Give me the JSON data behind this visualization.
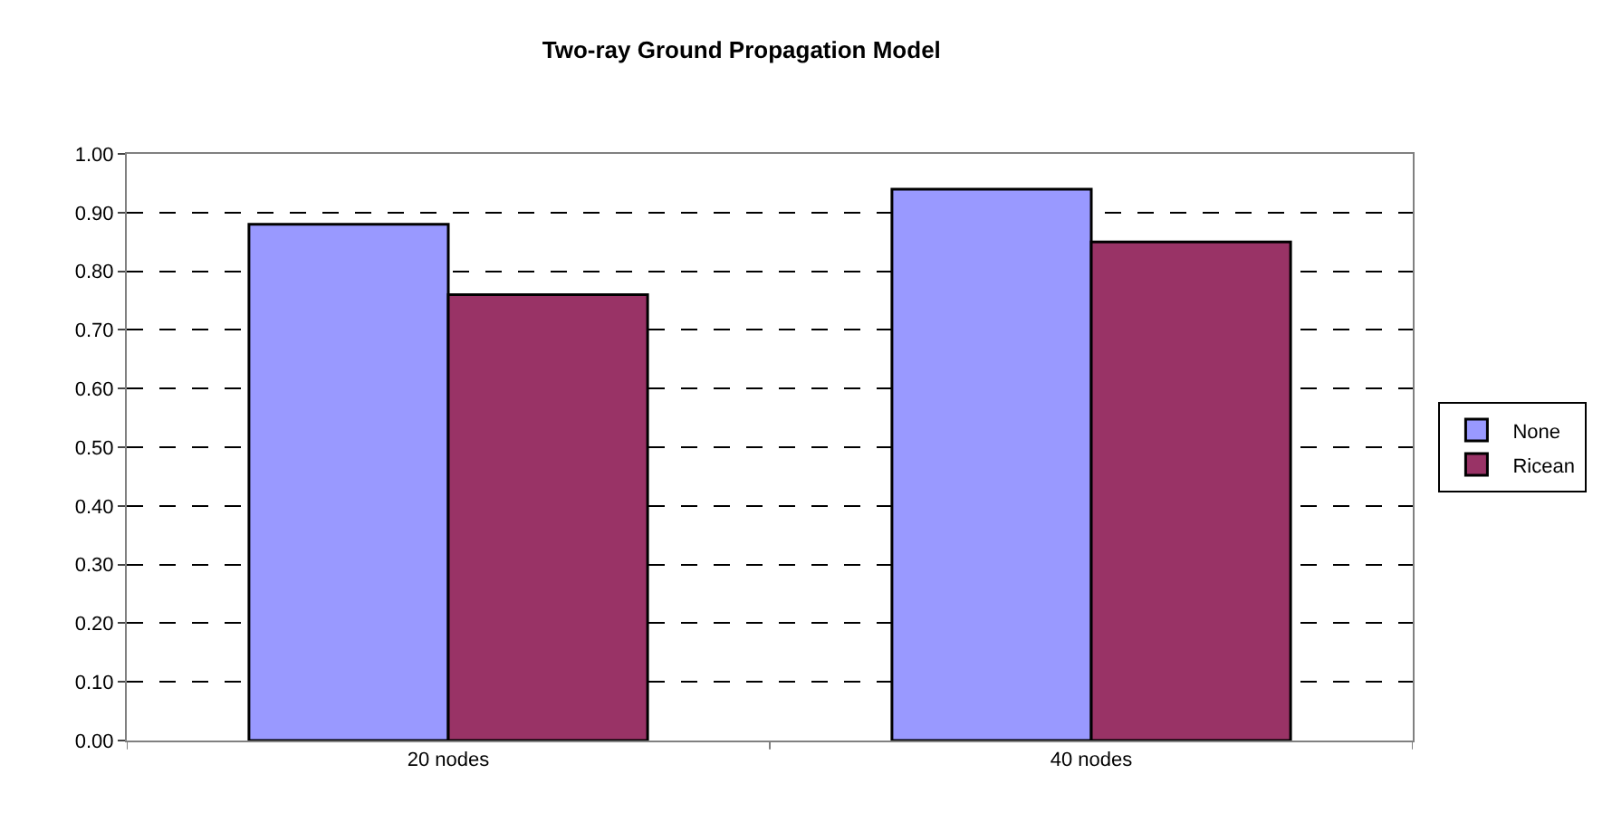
{
  "chart_data": {
    "type": "bar",
    "title": "Two-ray Ground Propagation Model",
    "categories": [
      "20 nodes",
      "40 nodes"
    ],
    "series": [
      {
        "name": "None",
        "color": "#9999ff",
        "values": [
          0.88,
          0.94
        ]
      },
      {
        "name": "Ricean",
        "color": "#993366",
        "values": [
          0.76,
          0.85
        ]
      }
    ],
    "ylim": [
      0,
      1
    ],
    "yticks": [
      {
        "value": 0,
        "label": "0.00"
      },
      {
        "value": 0.1,
        "label": "0.10"
      },
      {
        "value": 0.2,
        "label": "0.20"
      },
      {
        "value": 0.3,
        "label": "0.30"
      },
      {
        "value": 0.4,
        "label": "0.40"
      },
      {
        "value": 0.5,
        "label": "0.50"
      },
      {
        "value": 0.6,
        "label": "0.60"
      },
      {
        "value": 0.7,
        "label": "0.70"
      },
      {
        "value": 0.8,
        "label": "0.80"
      },
      {
        "value": 0.9,
        "label": "0.90"
      },
      {
        "value": 1,
        "label": "1.00"
      }
    ],
    "grid": "y",
    "legend": "right"
  }
}
